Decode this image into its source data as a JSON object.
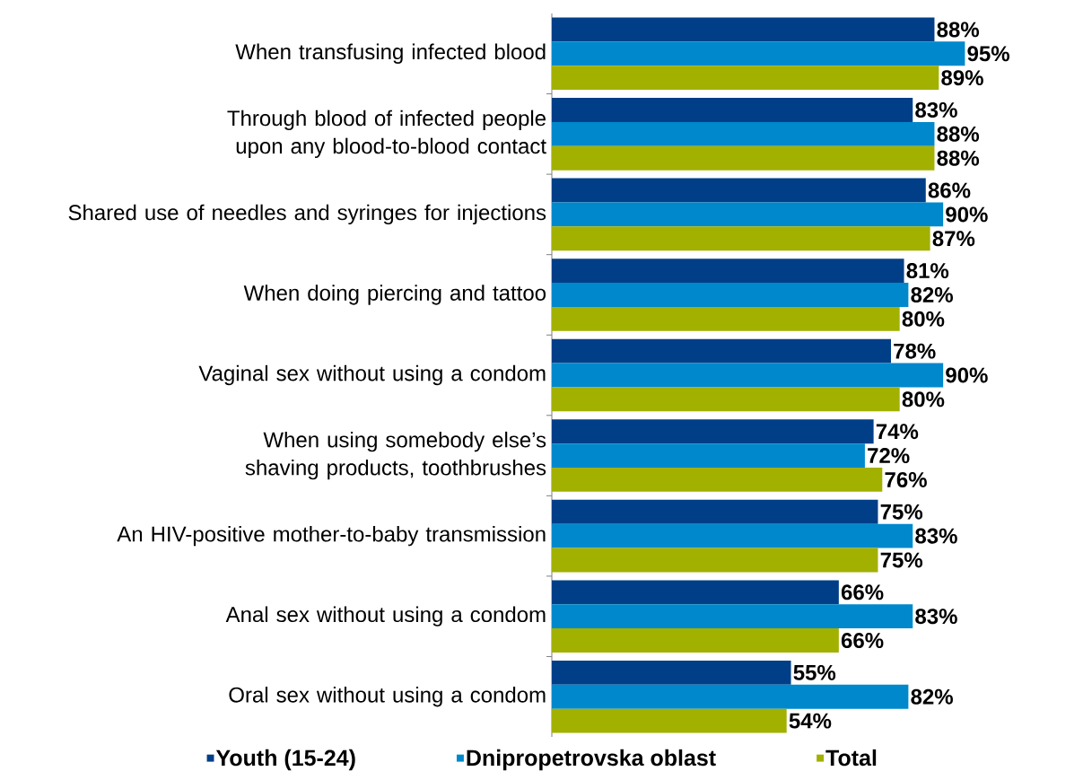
{
  "chart_data": {
    "type": "bar",
    "orientation": "horizontal",
    "legend": "bottom",
    "grid": false,
    "categories": [
      "When transfusing infected blood",
      "Through blood of infected people upon any blood-to-blood contact",
      "Shared use of needles and syringes for injections",
      "When doing piercing and tattoo",
      "Vaginal sex without using a condom",
      "When using somebody else’s shaving products, toothbrushes",
      "An HIV-positive mother-to-baby transmission",
      "Anal sex without using a condom",
      "Oral sex without using a condom"
    ],
    "series": [
      {
        "name": "Youth (15-24)",
        "color": "#003f87",
        "values": [
          88,
          83,
          86,
          81,
          78,
          74,
          75,
          66,
          55
        ],
        "value_labels": [
          "88%",
          "83%",
          "86%",
          "81%",
          "78%",
          "74%",
          "75%",
          "66%",
          "55%"
        ]
      },
      {
        "name": "Dnipropetrovska oblast",
        "color": "#0088cc",
        "values": [
          95,
          88,
          90,
          82,
          90,
          72,
          83,
          83,
          82
        ],
        "value_labels": [
          "95%",
          "88%",
          "90%",
          "82%",
          "90%",
          "72%",
          "83%",
          "83%",
          "82%"
        ]
      },
      {
        "name": "Total",
        "color": "#a2b000",
        "values": [
          89,
          88,
          87,
          80,
          80,
          76,
          75,
          66,
          54
        ],
        "value_labels": [
          "89%",
          "88%",
          "87%",
          "80%",
          "80%",
          "76%",
          "75%",
          "66%",
          "54%"
        ]
      }
    ]
  }
}
